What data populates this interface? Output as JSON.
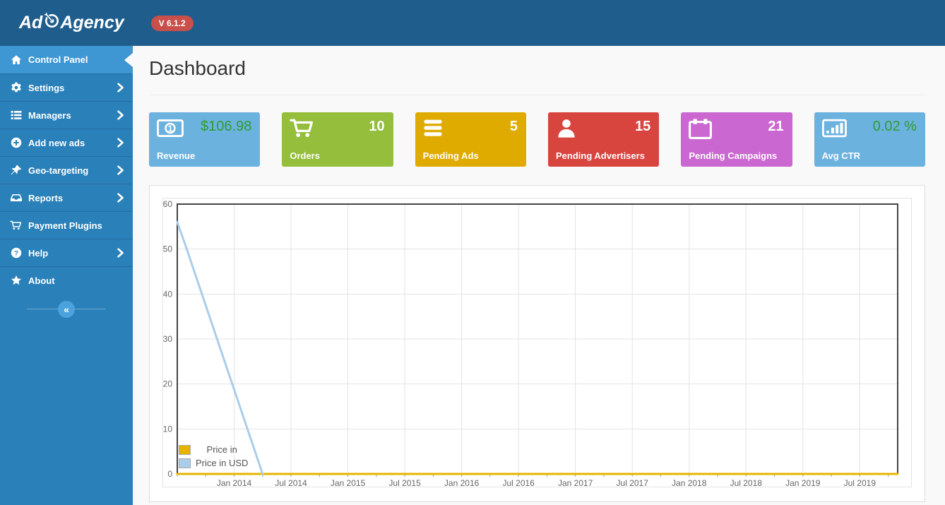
{
  "app": {
    "logo_prefix": "Ad",
    "logo_suffix": "Agency",
    "version": "V 6.1.2"
  },
  "page": {
    "title": "Dashboard"
  },
  "sidebar": {
    "items": [
      {
        "label": "Control Panel",
        "icon": "home-icon",
        "active": true,
        "chevron": false
      },
      {
        "label": "Settings",
        "icon": "gear-icon",
        "active": false,
        "chevron": true
      },
      {
        "label": "Managers",
        "icon": "list-icon",
        "active": false,
        "chevron": true
      },
      {
        "label": "Add new ads",
        "icon": "plus-circle-icon",
        "active": false,
        "chevron": true
      },
      {
        "label": "Geo-targeting",
        "icon": "pin-icon",
        "active": false,
        "chevron": true
      },
      {
        "label": "Reports",
        "icon": "inbox-icon",
        "active": false,
        "chevron": true
      },
      {
        "label": "Payment Plugins",
        "icon": "cart-icon",
        "active": false,
        "chevron": false
      },
      {
        "label": "Help",
        "icon": "question-icon",
        "active": false,
        "chevron": true
      },
      {
        "label": "About",
        "icon": "star-icon",
        "active": false,
        "chevron": false
      }
    ],
    "collapse_glyph": "«"
  },
  "stats": [
    {
      "label": "Revenue",
      "value": "$106.98",
      "bg": "#6cb2de",
      "value_color": "#2e9c35",
      "icon": "banknote-icon"
    },
    {
      "label": "Orders",
      "value": "10",
      "bg": "#94be3b",
      "value_color": "#ffffff",
      "icon": "cart-icon"
    },
    {
      "label": "Pending Ads",
      "value": "5",
      "bg": "#e0ab00",
      "value_color": "#ffffff",
      "icon": "bars-icon"
    },
    {
      "label": "Pending Advertisers",
      "value": "15",
      "bg": "#d8453f",
      "value_color": "#ffffff",
      "icon": "person-icon"
    },
    {
      "label": "Pending Campaigns",
      "value": "21",
      "bg": "#ca67d0",
      "value_color": "#ffffff",
      "icon": "calendar-icon"
    },
    {
      "label": "Avg CTR",
      "value": "0.02 %",
      "bg": "#6cb2de",
      "value_color": "#2e9c35",
      "icon": "bar-chart-icon"
    }
  ],
  "chart_data": {
    "type": "line",
    "title": "",
    "x_range": [
      "2013-07",
      "2019-11"
    ],
    "ylim": [
      0,
      60
    ],
    "y_ticks": [
      0,
      10,
      20,
      30,
      40,
      50,
      60
    ],
    "x_ticks": [
      {
        "date": "2014-01",
        "label": "Jan 2014"
      },
      {
        "date": "2014-07",
        "label": "Jul 2014"
      },
      {
        "date": "2015-01",
        "label": "Jan 2015"
      },
      {
        "date": "2015-07",
        "label": "Jul 2015"
      },
      {
        "date": "2016-01",
        "label": "Jan 2016"
      },
      {
        "date": "2016-07",
        "label": "Jul 2016"
      },
      {
        "date": "2017-01",
        "label": "Jan 2017"
      },
      {
        "date": "2017-07",
        "label": "Jul 2017"
      },
      {
        "date": "2018-01",
        "label": "Jan 2018"
      },
      {
        "date": "2018-07",
        "label": "Jul 2018"
      },
      {
        "date": "2019-01",
        "label": "Jan 2019"
      },
      {
        "date": "2019-07",
        "label": "Jul 2019"
      }
    ],
    "series": [
      {
        "name": "Price in",
        "color": "#e6b400",
        "points": [
          [
            "2013-07",
            0
          ],
          [
            "2019-11",
            0
          ]
        ]
      },
      {
        "name": "Price in USD",
        "color": "#a9cdea",
        "points": [
          [
            "2013-07",
            56
          ],
          [
            "2013-08",
            50
          ],
          [
            "2014-04",
            0
          ]
        ]
      }
    ],
    "legend_position": "bottom-left",
    "grid": true
  }
}
